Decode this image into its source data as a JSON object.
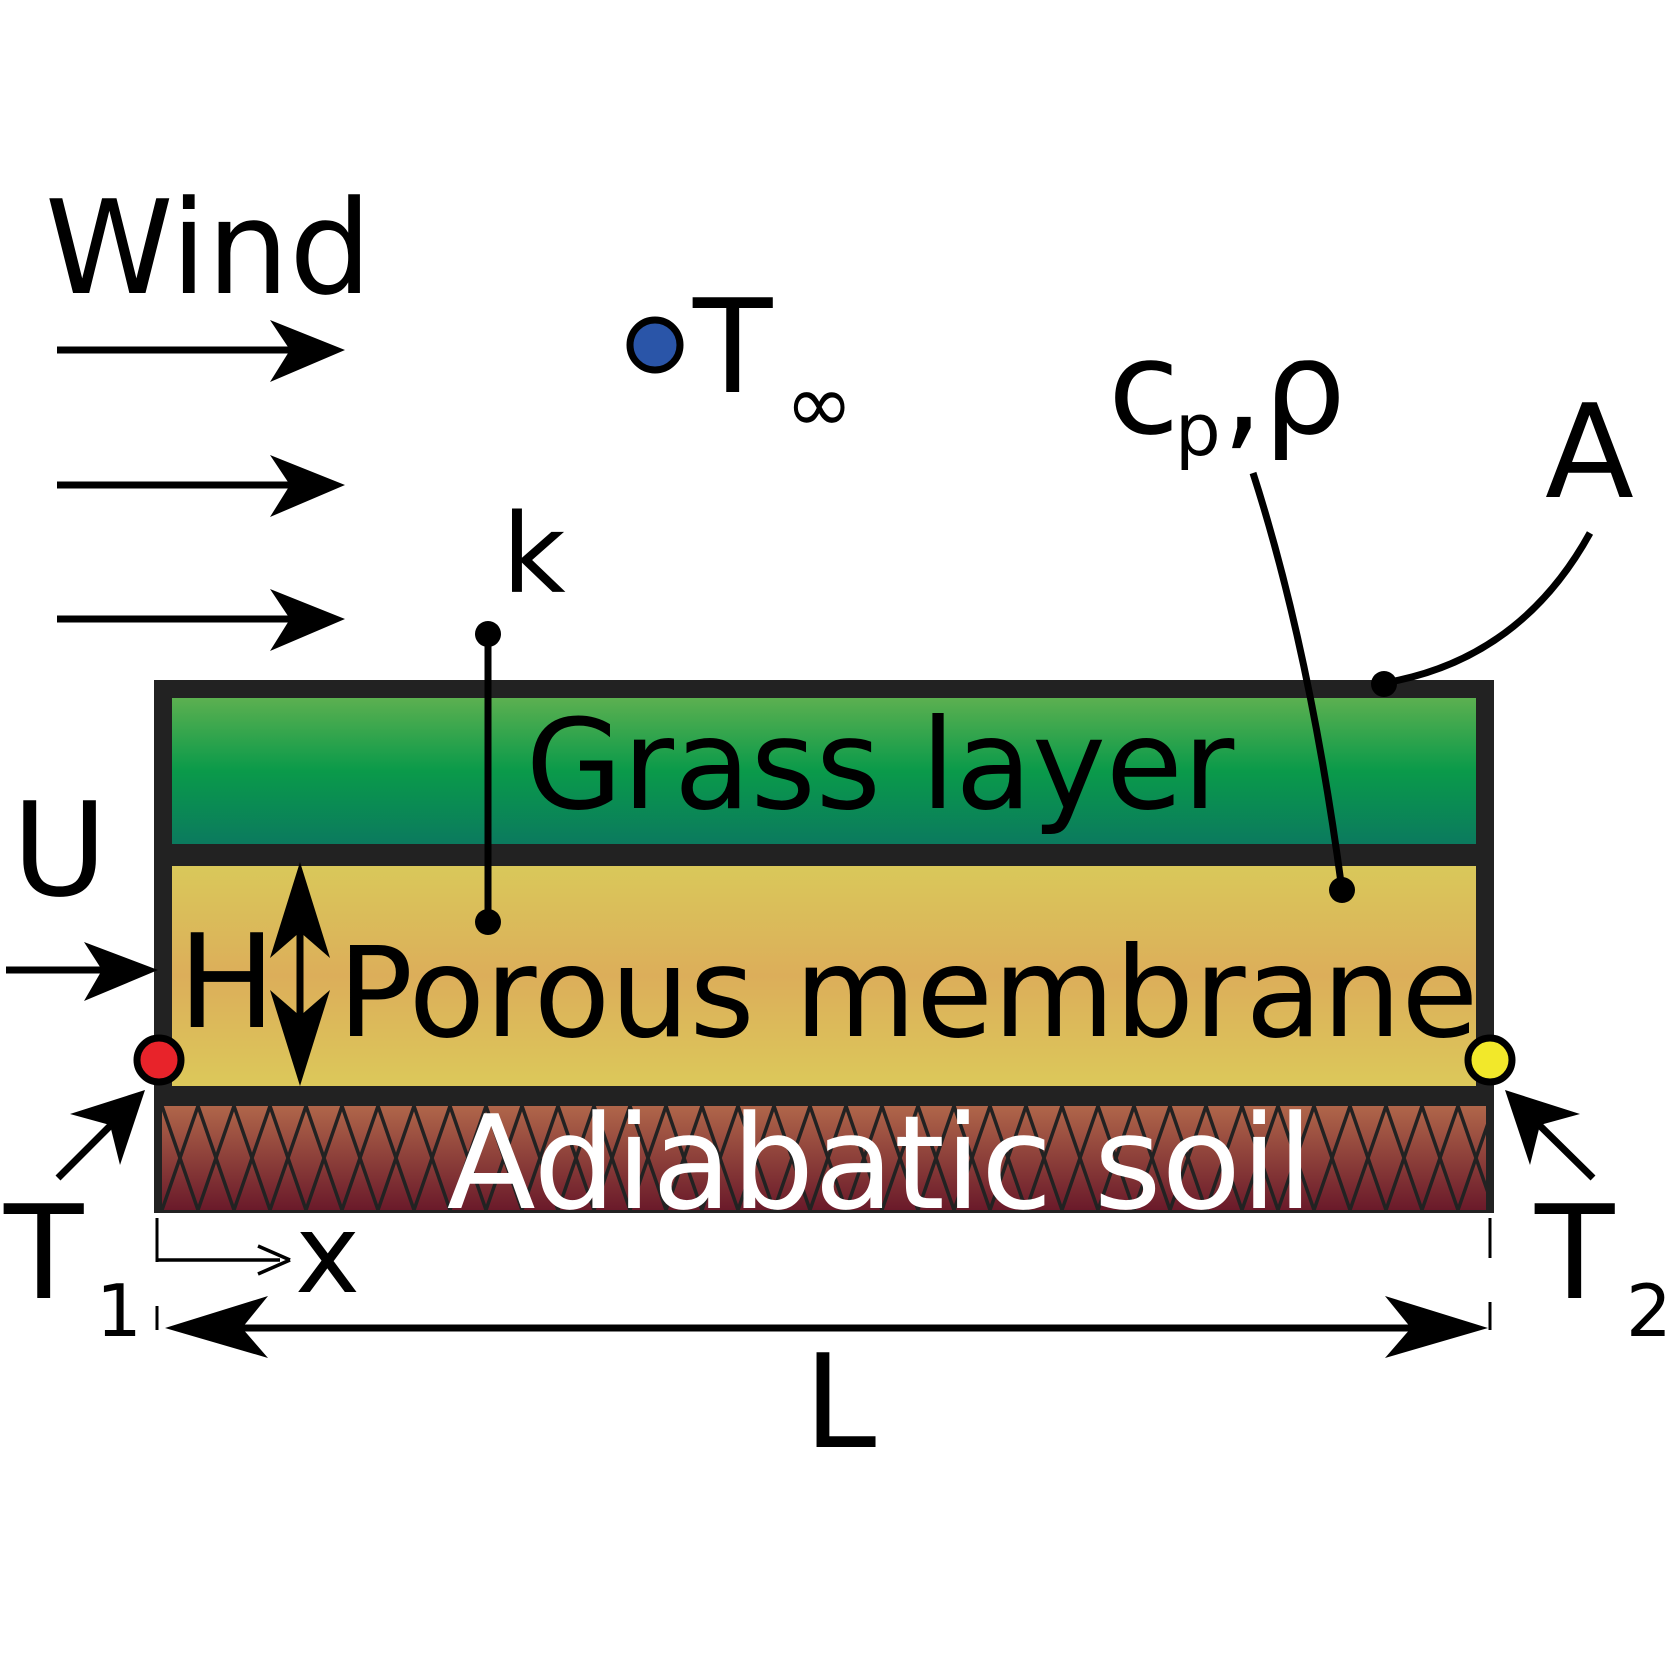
{
  "labels": {
    "wind": "Wind",
    "t_inf_main": "T",
    "t_inf_sub": "∞",
    "cp_main": "c",
    "cp_sub": "p",
    "rho_part": ",ρ",
    "area": "A",
    "conductivity": "k",
    "grass_layer": "Grass layer",
    "velocity": "U",
    "height": "H",
    "porous_membrane": "Porous membrane",
    "adiabatic_soil": "Adiabatic soil",
    "t1_main": "T",
    "t1_sub": "1",
    "t2_main": "T",
    "t2_sub": "2",
    "x_coord": "x",
    "length": "L"
  },
  "colors": {
    "ambient_dot": "#2a55a8",
    "inlet_dot": "#e8232a",
    "outlet_dot": "#f2e82a",
    "grass_top": "#5cb050",
    "grass_mid": "#0a9a4a",
    "grass_bottom": "#0b7a5e",
    "membrane_top": "#d9c85a",
    "membrane_mid": "#dcae5a",
    "membrane_bottom": "#dcc85a",
    "soil_top": "#b0664a",
    "soil_bottom": "#6a1a2a",
    "outline": "#222222"
  }
}
